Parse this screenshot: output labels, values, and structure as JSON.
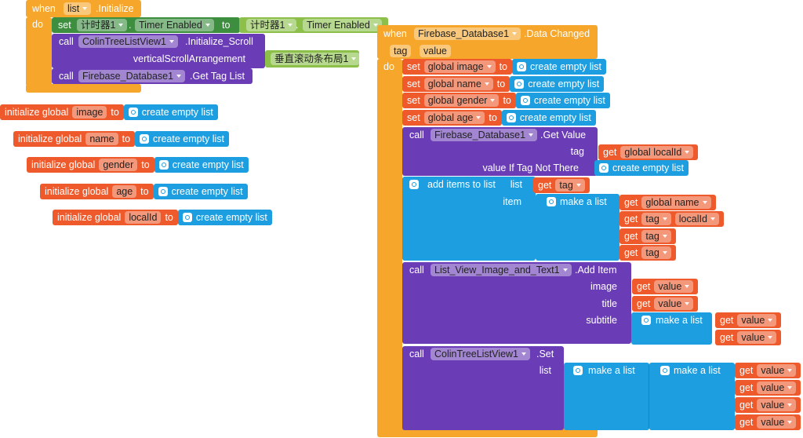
{
  "keywords": {
    "when": "when",
    "do": "do",
    "set": "set",
    "to": "to",
    "call": "call",
    "get": "get",
    "dot": ".",
    "create_empty_list": "create empty list",
    "make_a_list": "make a list",
    "initialize_global": "initialize global"
  },
  "list_initialize": {
    "component": "list",
    "event": ".Initialize",
    "set_timer": {
      "component": "计时器1",
      "property": "Timer Enabled",
      "value_component": "计时器1",
      "value_property": "Timer Enabled"
    },
    "initialize_scroll": {
      "component": "ColinTreeListView1",
      "method": ".Initialize_Scroll",
      "param": "verticalScrollArrangement",
      "value": "垂直滚动条布局1"
    },
    "get_tag_list": {
      "component": "Firebase_Database1",
      "method": ".Get Tag List"
    }
  },
  "globals": [
    "image",
    "name",
    "gender",
    "age",
    "localId"
  ],
  "data_changed": {
    "component": "Firebase_Database1",
    "event": ".Data Changed",
    "params": [
      "tag",
      "value"
    ],
    "sets": [
      "global image",
      "global name",
      "global gender",
      "global age"
    ],
    "get_value": {
      "component": "Firebase_Database1",
      "method": ".Get Value",
      "tag_label": "tag",
      "tag_value": "global localId",
      "default_label": "value If Tag Not There"
    },
    "add_items": {
      "label": "add items to list",
      "list_label": "list",
      "list_value": "tag",
      "item_label": "item",
      "items": [
        "global name",
        "tag",
        "tag",
        "tag"
      ],
      "overlap_value": "localId"
    },
    "add_item": {
      "component": "List_View_Image_and_Text1",
      "method": ".Add Item",
      "image_label": "image",
      "image_value": "value",
      "title_label": "title",
      "title_value": "value",
      "subtitle_label": "subtitle",
      "subtitle_values": [
        "value",
        "value"
      ]
    },
    "set_list": {
      "component": "ColinTreeListView1",
      "method": ".Set",
      "list_label": "list",
      "values": [
        "value",
        "value",
        "value",
        "value"
      ]
    }
  }
}
